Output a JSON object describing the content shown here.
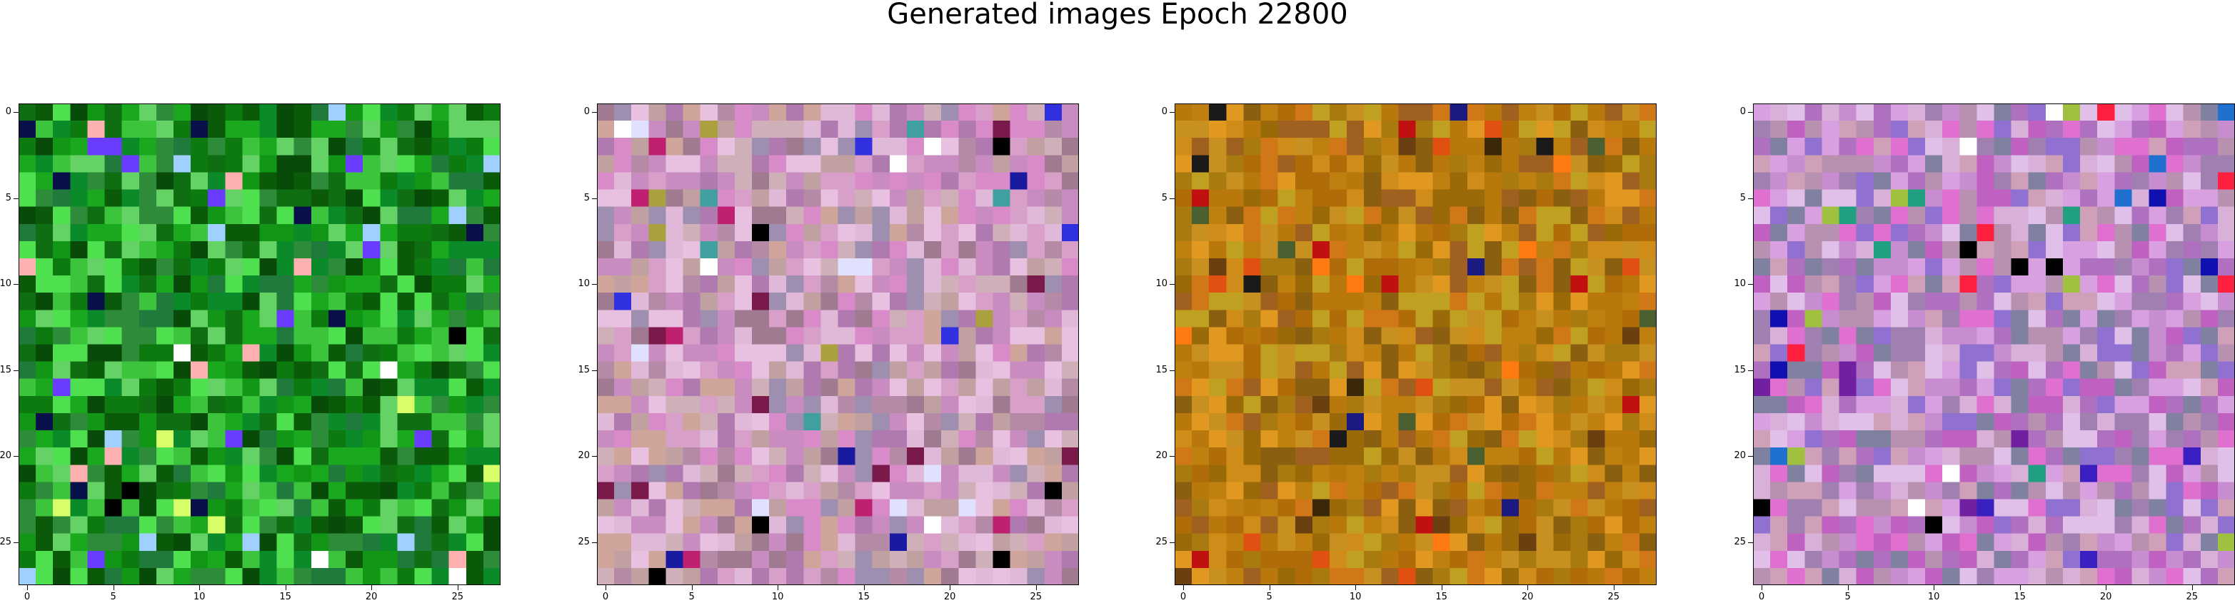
{
  "title": "Generated images Epoch 22800",
  "chart_data": {
    "type": "heatmap",
    "title": "Generated images Epoch 22800",
    "grid_size": [
      28,
      28
    ],
    "xlim": [
      -0.5,
      27.5
    ],
    "ylim": [
      27.5,
      -0.5
    ],
    "grid": false,
    "panels": [
      {
        "name": "",
        "xticks": [
          "0",
          "5",
          "10",
          "15",
          "20",
          "25"
        ],
        "yticks": [
          "0",
          "5",
          "10",
          "15",
          "20",
          "25"
        ],
        "palette": [
          "#0a5a0a",
          "#0d7a10",
          "#129616",
          "#0f6e12",
          "#1aa81e",
          "#2e8b3a",
          "#3cc43c",
          "#64d264",
          "#084a08",
          "#1f7a3c",
          "#4fe04f",
          "#0b8a2a"
        ],
        "accents": [
          "#6a3cff",
          "#9fd0ff",
          "#ffffff",
          "#ffb0b0",
          "#08104a",
          "#d8ff6a",
          "#000000"
        ],
        "seed": 11
      },
      {
        "name": "",
        "xticks": [
          "0",
          "5",
          "10",
          "15",
          "20",
          "25"
        ],
        "yticks": [
          "0",
          "5",
          "10",
          "15",
          "20",
          "25"
        ],
        "palette": [
          "#c88cc0",
          "#d8a0c8",
          "#b58aa6",
          "#e0b8d8",
          "#a07a90",
          "#cfa49a",
          "#9e8fb0",
          "#d98ac8",
          "#c0a0a0",
          "#e8c0e0",
          "#b07ab0",
          "#d0b0b8"
        ],
        "accents": [
          "#000000",
          "#1a1aa0",
          "#ffffff",
          "#3030e0",
          "#7a1a4a",
          "#aaa040",
          "#e0e0ff",
          "#c02070",
          "#40a0a0"
        ],
        "seed": 23
      },
      {
        "name": "",
        "xticks": [
          "0",
          "5",
          "10",
          "15",
          "20",
          "25"
        ],
        "yticks": [
          "0",
          "5",
          "10",
          "15",
          "20",
          "25"
        ],
        "palette": [
          "#c08010",
          "#b06c08",
          "#d08c18",
          "#9a6a08",
          "#c89020",
          "#a87a10",
          "#e09820",
          "#b8780c",
          "#8a6010",
          "#d07818",
          "#c0a020",
          "#a06020"
        ],
        "accents": [
          "#e05010",
          "#ff7a10",
          "#1a1a1a",
          "#6a4010",
          "#4a6030",
          "#c01010",
          "#1a1a80",
          "#3a2808"
        ],
        "seed": 37
      },
      {
        "name": "",
        "xticks": [
          "0",
          "5",
          "10",
          "15",
          "20",
          "25"
        ],
        "yticks": [
          "0",
          "5",
          "10",
          "15",
          "20",
          "25"
        ],
        "palette": [
          "#c88cd0",
          "#d8a0e0",
          "#b070c0",
          "#e0c0e8",
          "#a080b0",
          "#c060c0",
          "#9070d0",
          "#d8b0d8",
          "#b890b0",
          "#e070d0",
          "#8080a0",
          "#cfa0b8"
        ],
        "accents": [
          "#3a20c0",
          "#000000",
          "#ff2040",
          "#2070d0",
          "#ffffff",
          "#20a080",
          "#a0c040",
          "#7020a0",
          "#1010b0"
        ],
        "seed": 53
      }
    ]
  }
}
